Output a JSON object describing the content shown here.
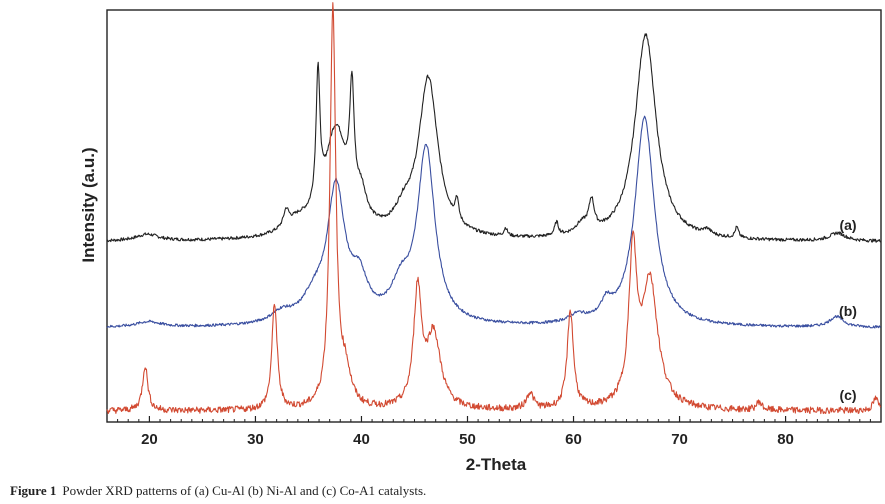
{
  "chart_data": {
    "type": "line",
    "xlabel": "2-Theta",
    "ylabel": "Intensity (a.u.)",
    "xlim": [
      16,
      89
    ],
    "x_ticks": [
      "20",
      "30",
      "40",
      "50",
      "60",
      "70",
      "80"
    ],
    "y_ticks_shown": false,
    "grid": false,
    "legend": "labels at right end of each trace",
    "series": [
      {
        "name": "(a)",
        "color": "#222222",
        "baseline": 0.0,
        "noise": 0.006,
        "peaks": [
          {
            "x": 19.8,
            "h": 0.025,
            "w": 1.3
          },
          {
            "x": 32.9,
            "h": 0.06,
            "w": 0.3
          },
          {
            "x": 34.0,
            "h": 0.05,
            "w": 1.5
          },
          {
            "x": 35.9,
            "h": 0.5,
            "w": 0.22
          },
          {
            "x": 37.6,
            "h": 0.4,
            "w": 1.3
          },
          {
            "x": 39.1,
            "h": 0.42,
            "w": 0.25
          },
          {
            "x": 40.0,
            "h": 0.1,
            "w": 0.6
          },
          {
            "x": 44.0,
            "h": 0.07,
            "w": 1.0
          },
          {
            "x": 46.3,
            "h": 0.6,
            "w": 1.1
          },
          {
            "x": 49.0,
            "h": 0.08,
            "w": 0.2
          },
          {
            "x": 53.6,
            "h": 0.03,
            "w": 0.2
          },
          {
            "x": 58.4,
            "h": 0.05,
            "w": 0.22
          },
          {
            "x": 60.8,
            "h": 0.04,
            "w": 0.8
          },
          {
            "x": 61.7,
            "h": 0.11,
            "w": 0.3
          },
          {
            "x": 66.8,
            "h": 0.78,
            "w": 1.2
          },
          {
            "x": 72.6,
            "h": 0.02,
            "w": 0.4
          },
          {
            "x": 75.4,
            "h": 0.04,
            "w": 0.2
          },
          {
            "x": 84.9,
            "h": 0.03,
            "w": 0.9
          }
        ]
      },
      {
        "name": "(b)",
        "color": "#3a4fa0",
        "baseline": 0.0,
        "noise": 0.005,
        "peaks": [
          {
            "x": 19.9,
            "h": 0.02,
            "w": 1.4
          },
          {
            "x": 32.5,
            "h": 0.04,
            "w": 1.2
          },
          {
            "x": 35.5,
            "h": 0.08,
            "w": 1.3
          },
          {
            "x": 37.6,
            "h": 0.5,
            "w": 1.0
          },
          {
            "x": 39.8,
            "h": 0.14,
            "w": 1.0
          },
          {
            "x": 43.7,
            "h": 0.12,
            "w": 1.1
          },
          {
            "x": 46.1,
            "h": 0.66,
            "w": 1.0
          },
          {
            "x": 60.4,
            "h": 0.03,
            "w": 1.0
          },
          {
            "x": 63.1,
            "h": 0.06,
            "w": 0.6
          },
          {
            "x": 66.7,
            "h": 0.79,
            "w": 1.1
          },
          {
            "x": 84.8,
            "h": 0.04,
            "w": 0.8
          }
        ]
      },
      {
        "name": "(c)",
        "color": "#d24a32",
        "baseline": 0.0,
        "noise": 0.008,
        "peaks": [
          {
            "x": 19.6,
            "h": 0.11,
            "w": 0.3
          },
          {
            "x": 31.8,
            "h": 0.26,
            "w": 0.3
          },
          {
            "x": 37.3,
            "h": 0.97,
            "w": 0.33
          },
          {
            "x": 38.5,
            "h": 0.08,
            "w": 0.6
          },
          {
            "x": 45.3,
            "h": 0.28,
            "w": 0.45
          },
          {
            "x": 46.8,
            "h": 0.18,
            "w": 0.8
          },
          {
            "x": 55.9,
            "h": 0.04,
            "w": 0.4
          },
          {
            "x": 59.7,
            "h": 0.24,
            "w": 0.35
          },
          {
            "x": 65.6,
            "h": 0.36,
            "w": 0.45
          },
          {
            "x": 67.2,
            "h": 0.31,
            "w": 0.9
          },
          {
            "x": 77.5,
            "h": 0.02,
            "w": 0.3
          },
          {
            "x": 88.5,
            "h": 0.03,
            "w": 0.3
          }
        ]
      }
    ]
  },
  "caption": {
    "figure_label": "Figure 1",
    "text": "Powder XRD patterns of (a) Cu-Al (b) Ni-Al and (c) Co-A1 catalysts."
  }
}
